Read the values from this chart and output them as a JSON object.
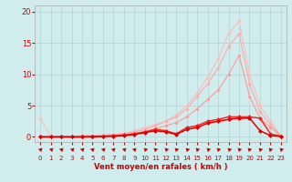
{
  "xlabel": "Vent moyen/en rafales ( km/h )",
  "xlim": [
    -0.5,
    23.5
  ],
  "ylim": [
    -0.8,
    21
  ],
  "yticks": [
    0,
    5,
    10,
    15,
    20
  ],
  "xticks": [
    0,
    1,
    2,
    3,
    4,
    5,
    6,
    7,
    8,
    9,
    10,
    11,
    12,
    13,
    14,
    15,
    16,
    17,
    18,
    19,
    20,
    21,
    22,
    23
  ],
  "background_color": "#d0ecec",
  "grid_color": "#b0d4d4",
  "x": [
    0,
    1,
    2,
    3,
    4,
    5,
    6,
    7,
    8,
    9,
    10,
    11,
    12,
    13,
    14,
    15,
    16,
    17,
    18,
    19,
    20,
    21,
    22,
    23
  ],
  "s1": [
    3.0,
    0.1,
    0.1,
    0.1,
    0.2,
    0.2,
    0.3,
    0.4,
    0.6,
    1.0,
    1.5,
    2.0,
    2.5,
    3.5,
    5.0,
    7.0,
    9.5,
    12.5,
    16.5,
    18.5,
    10.0,
    5.0,
    2.5,
    0.2
  ],
  "s2": [
    0.1,
    0.1,
    0.1,
    0.1,
    0.2,
    0.2,
    0.3,
    0.4,
    0.5,
    0.8,
    1.2,
    1.8,
    2.5,
    3.2,
    4.5,
    6.5,
    8.5,
    11.0,
    14.5,
    16.5,
    8.5,
    4.0,
    2.0,
    0.2
  ],
  "s3": [
    0.1,
    0.1,
    0.1,
    0.1,
    0.1,
    0.1,
    0.2,
    0.3,
    0.4,
    0.6,
    0.9,
    1.3,
    1.8,
    2.3,
    3.2,
    4.5,
    6.0,
    7.5,
    10.0,
    13.0,
    6.5,
    3.0,
    1.5,
    0.1
  ],
  "s4": [
    0.0,
    0.0,
    0.0,
    0.0,
    0.0,
    0.1,
    0.1,
    0.2,
    0.3,
    0.5,
    0.8,
    1.2,
    1.0,
    0.5,
    1.5,
    1.8,
    2.5,
    2.8,
    3.2,
    3.2,
    3.2,
    3.0,
    0.5,
    0.1
  ],
  "s5": [
    0.0,
    0.0,
    0.0,
    0.0,
    0.0,
    0.0,
    0.1,
    0.1,
    0.2,
    0.4,
    0.7,
    1.0,
    0.8,
    0.4,
    1.2,
    1.5,
    2.2,
    2.5,
    2.8,
    3.0,
    3.0,
    1.0,
    0.2,
    0.1
  ],
  "c1": "#ffbbbb",
  "c2": "#ffaaaa",
  "c3": "#ff9999",
  "c4": "#ff2222",
  "c5": "#dd0000",
  "tick_color": "#cc0000",
  "label_color": "#cc0000"
}
